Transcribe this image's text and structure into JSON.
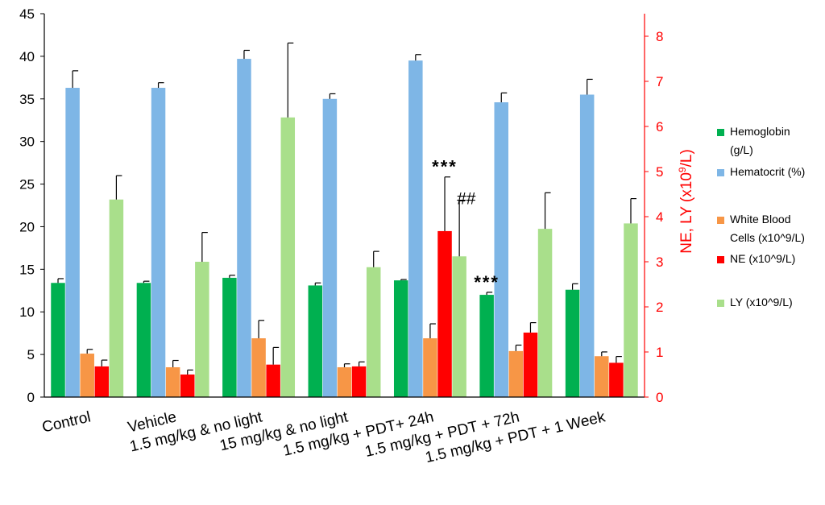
{
  "chart_data": {
    "type": "bar",
    "categories": [
      "Control",
      "Vehicle",
      "1.5 mg/kg & no light",
      "15 mg/kg & no light",
      "1.5 mg/kg + PDT+ 24h",
      "1.5 mg/kg + PDT + 72h",
      "1.5 mg/kg + PDT + 1 Week"
    ],
    "left_axis": {
      "ylim": [
        0,
        45
      ],
      "ticks": [
        0,
        5,
        10,
        15,
        20,
        25,
        30,
        35,
        40,
        45
      ],
      "tick_labels": [
        "0",
        "5",
        "10",
        "15",
        "20",
        "25",
        "30",
        "35",
        "40",
        "45"
      ]
    },
    "right_axis": {
      "ylim": [
        0,
        8.5
      ],
      "ticks": [
        0,
        1,
        2,
        3,
        4,
        5,
        6,
        7,
        8
      ],
      "tick_labels": [
        "0",
        "1",
        "2",
        "3",
        "4",
        "5",
        "6",
        "7",
        "8"
      ],
      "label_main": "NE, LY (x10",
      "label_sup": "9",
      "label_end": "/L)",
      "color": "#ff0000"
    },
    "series": [
      {
        "name": "Hemoglobin (g/L)",
        "legend_lines": [
          "Hemoglobin",
          "(g/L)"
        ],
        "axis": "left",
        "color": "#00b050",
        "values": [
          13.4,
          13.4,
          14.0,
          13.1,
          13.7,
          12.0,
          12.6
        ],
        "errors": [
          0.5,
          0.2,
          0.3,
          0.3,
          0.1,
          0.3,
          0.7
        ]
      },
      {
        "name": "Hematocrit (%)",
        "legend_lines": [
          "Hematocrit (%)"
        ],
        "axis": "left",
        "color": "#7eb6e6",
        "values": [
          36.3,
          36.3,
          39.7,
          35.0,
          39.5,
          34.6,
          35.5
        ],
        "errors": [
          2.0,
          0.6,
          1.0,
          0.6,
          0.7,
          1.1,
          1.8
        ]
      },
      {
        "name": "White Blood Cells (x10^9/L)",
        "legend_lines": [
          "White Blood",
          "Cells (x10^9/L)"
        ],
        "axis": "left",
        "color": "#f79646",
        "values": [
          5.1,
          3.5,
          6.9,
          3.5,
          6.9,
          5.4,
          4.8
        ],
        "errors": [
          0.5,
          0.8,
          2.1,
          0.4,
          1.7,
          0.7,
          0.5
        ]
      },
      {
        "name": "NE (x10^9/L)",
        "legend_lines": [
          "NE (x10^9/L)"
        ],
        "axis": "right",
        "color": "#ff0000",
        "values": [
          0.68,
          0.5,
          0.72,
          0.68,
          3.68,
          1.43,
          0.76
        ],
        "errors": [
          0.14,
          0.1,
          0.38,
          0.1,
          1.2,
          0.22,
          0.14
        ]
      },
      {
        "name": "LY (x10^9/L)",
        "legend_lines": [
          "LY (x10^9/L)"
        ],
        "axis": "right",
        "color": "#a9df8b",
        "values": [
          4.38,
          3.0,
          6.2,
          2.88,
          3.12,
          3.73,
          3.85
        ],
        "errors": [
          0.53,
          0.65,
          1.65,
          0.35,
          1.23,
          0.8,
          0.55
        ]
      }
    ],
    "annotations": [
      {
        "text": "***",
        "category_index": 4,
        "series_index": 3
      },
      {
        "text": "##",
        "category_index": 4,
        "series_index": 4
      },
      {
        "text": "***",
        "category_index": 5,
        "series_index": 0
      }
    ],
    "title": "",
    "xlabel": "",
    "ylabel": ""
  }
}
